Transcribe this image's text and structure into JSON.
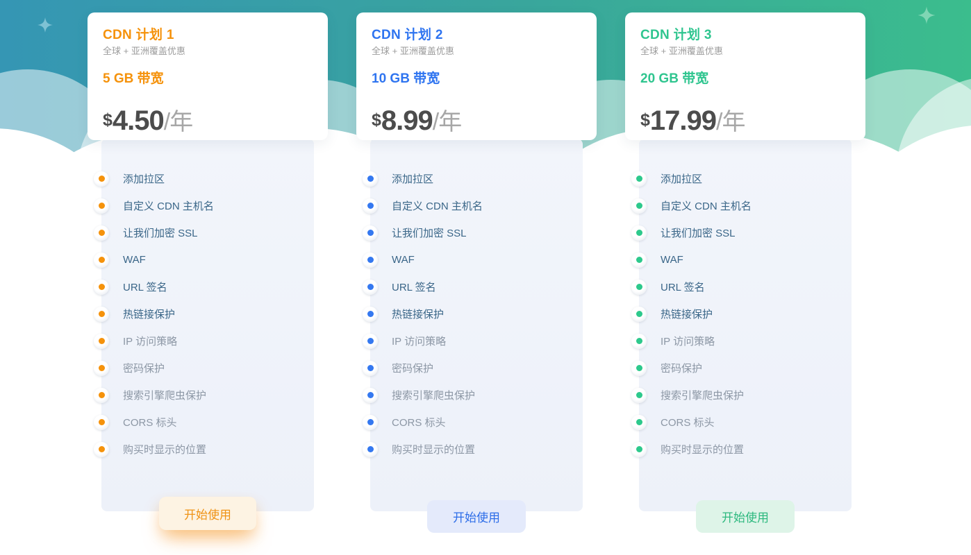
{
  "colors": {
    "hero_gradient_left": "#3596b4",
    "hero_gradient_right": "#3bbd8d",
    "sparkle_left": "#7ec2d4",
    "sparkle_right": "#7fd6b4",
    "panel_bg_top": "#f2f5fb",
    "panel_bg_bottom": "#edf1f9",
    "feature_text": "#3a6688",
    "feature_muted": "#8c97a5",
    "price_dark": "#4c4c4c",
    "price_period": "#a7a7a7",
    "subtitle_gray": "#9b9b9b"
  },
  "features": [
    {
      "label": "添加拉区",
      "muted": false
    },
    {
      "label": "自定义 CDN 主机名",
      "muted": false
    },
    {
      "label": "让我们加密 SSL",
      "muted": false
    },
    {
      "label": "WAF",
      "muted": false
    },
    {
      "label": "URL 签名",
      "muted": false
    },
    {
      "label": "热链接保护",
      "muted": false
    },
    {
      "label": "IP 访问策略",
      "muted": true
    },
    {
      "label": "密码保护",
      "muted": true
    },
    {
      "label": "搜索引擎爬虫保护",
      "muted": true
    },
    {
      "label": "CORS 标头",
      "muted": true
    },
    {
      "label": "购买时显示的位置",
      "muted": true
    }
  ],
  "plans": [
    {
      "name": "CDN 计划 1",
      "subtitle": "全球 + 亚洲覆盖优惠",
      "bandwidth": "5 GB 带宽",
      "currency": "$",
      "price": "4.50",
      "period": "/年",
      "cta": "开始使用",
      "accent": "#f5920b",
      "bullet": "#f5920b",
      "button_bg": "#fdf3e3",
      "button_text": "#ef9316"
    },
    {
      "name": "CDN 计划 2",
      "subtitle": "全球 + 亚洲覆盖优惠",
      "bandwidth": "10 GB 带宽",
      "currency": "$",
      "price": "8.99",
      "period": "/年",
      "cta": "开始使用",
      "accent": "#2e74f0",
      "bullet": "#3478f0",
      "button_bg": "#e4eafb",
      "button_text": "#2d6de8"
    },
    {
      "name": "CDN 计划 3",
      "subtitle": "全球 + 亚洲覆盖优惠",
      "bandwidth": "20 GB 带宽",
      "currency": "$",
      "price": "17.99",
      "period": "/年",
      "cta": "开始使用",
      "accent": "#2fc58f",
      "bullet": "#2dc98c",
      "button_bg": "#def4e8",
      "button_text": "#2eb97f"
    }
  ]
}
